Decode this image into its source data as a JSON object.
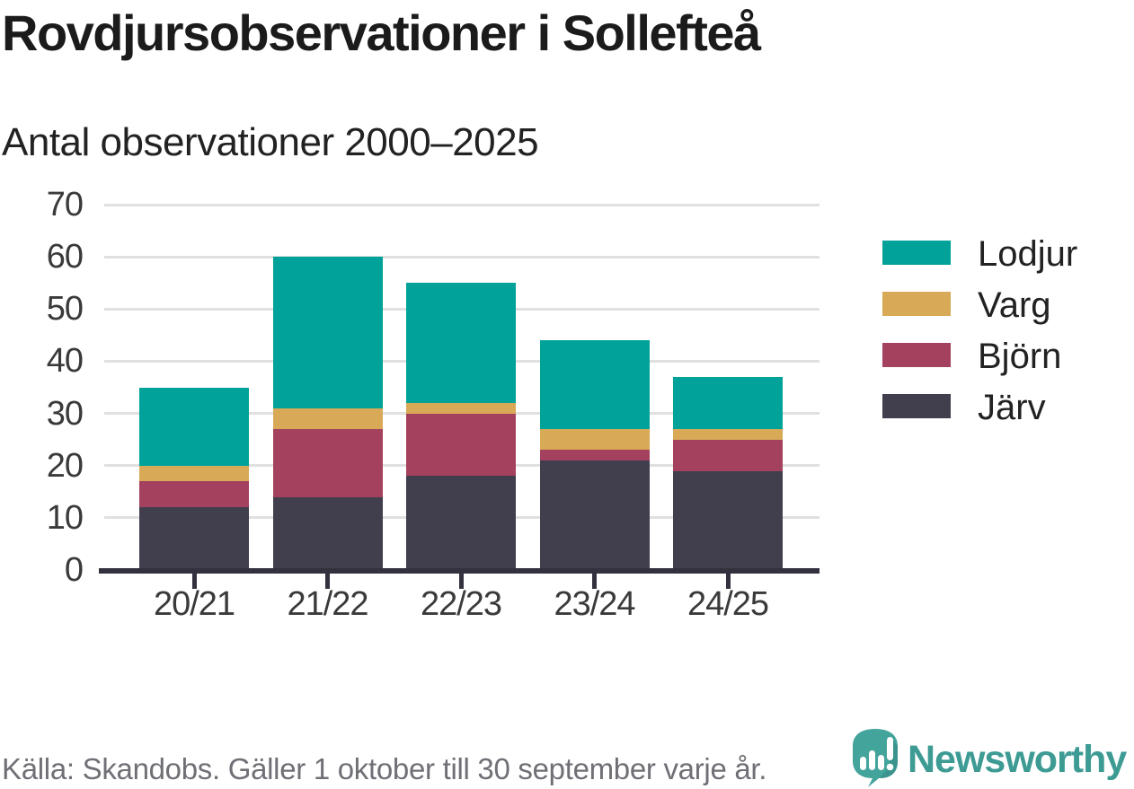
{
  "title": "Rovdjursobservationer i Sollefteå",
  "subtitle": "Antal observationer 2000–2025",
  "footer": {
    "source": "Källa: Skandobs. Gäller 1 oktober till 30 september varje år.",
    "brand": "Newsworthy"
  },
  "colors": {
    "lodjur": "#00a29a",
    "varg": "#d8a957",
    "bjorn": "#a4415e",
    "jarv": "#413e4d",
    "axis": "#34313e",
    "gridline": "#e0e0e0",
    "title_text": "#1b1b1b",
    "tick_text": "#3a3a3a",
    "footer_text": "#6f6f76",
    "brand_teal": "#3d9b94"
  },
  "chart_data": {
    "type": "bar",
    "stacked": true,
    "title": "Rovdjursobservationer i Sollefteå",
    "subtitle": "Antal observationer 2000–2025",
    "categories": [
      "20/21",
      "21/22",
      "22/23",
      "23/24",
      "24/25"
    ],
    "series": [
      {
        "name": "Järv",
        "color": "#413e4d",
        "values": [
          12,
          14,
          18,
          21,
          19
        ]
      },
      {
        "name": "Björn",
        "color": "#a4415e",
        "values": [
          5,
          13,
          12,
          2,
          6
        ]
      },
      {
        "name": "Varg",
        "color": "#d8a957",
        "values": [
          3,
          4,
          2,
          4,
          2
        ]
      },
      {
        "name": "Lodjur",
        "color": "#00a29a",
        "values": [
          15,
          29,
          23,
          17,
          10
        ]
      }
    ],
    "totals": [
      35,
      60,
      55,
      44,
      37
    ],
    "xlabel": "",
    "ylabel": "",
    "ylim": [
      0,
      70
    ],
    "yticks": [
      0,
      10,
      20,
      30,
      40,
      50,
      60,
      70
    ],
    "grid": "horizontal",
    "legend_position": "right",
    "legend_order": [
      "Lodjur",
      "Varg",
      "Björn",
      "Järv"
    ]
  }
}
